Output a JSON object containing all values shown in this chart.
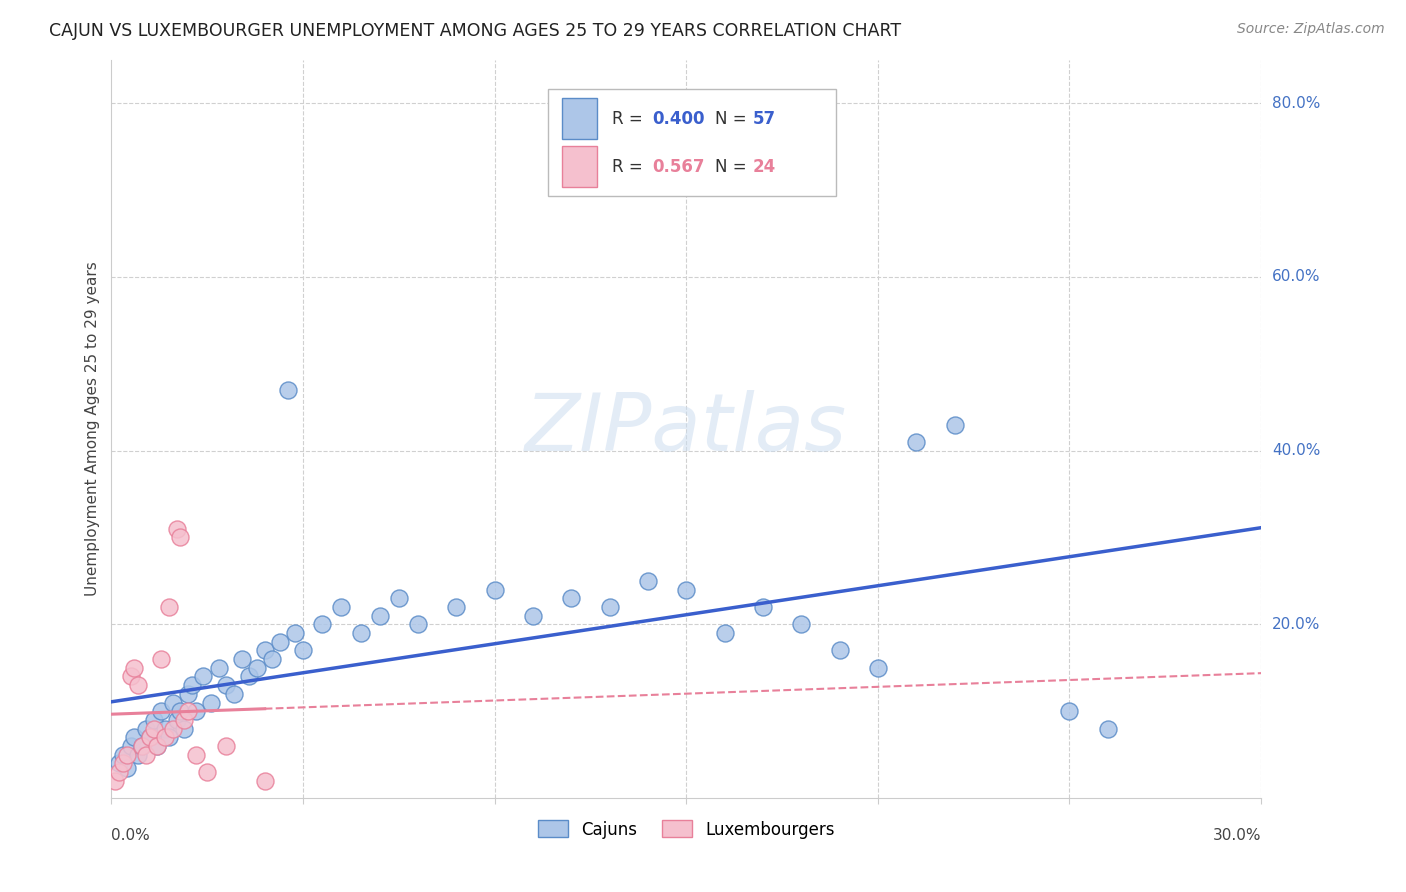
{
  "title": "CAJUN VS LUXEMBOURGER UNEMPLOYMENT AMONG AGES 25 TO 29 YEARS CORRELATION CHART",
  "source": "Source: ZipAtlas.com",
  "ylabel": "Unemployment Among Ages 25 to 29 years",
  "xlim": [
    0,
    0.3
  ],
  "ylim": [
    0,
    0.85
  ],
  "cajun_color": "#adc6e8",
  "cajun_edge_color": "#5b8cc8",
  "luxembourger_color": "#f5c0ce",
  "luxembourger_edge_color": "#e8809a",
  "cajun_line_color": "#3a5fcd",
  "luxembourger_line_color": "#e8809a",
  "grid_color": "#d0d0d0",
  "right_label_color": "#4472c4",
  "watermark_color": "#ccddf0",
  "cajun_points": [
    [
      0.002,
      0.04
    ],
    [
      0.003,
      0.05
    ],
    [
      0.004,
      0.035
    ],
    [
      0.005,
      0.06
    ],
    [
      0.006,
      0.07
    ],
    [
      0.007,
      0.05
    ],
    [
      0.008,
      0.06
    ],
    [
      0.009,
      0.08
    ],
    [
      0.01,
      0.07
    ],
    [
      0.011,
      0.09
    ],
    [
      0.012,
      0.06
    ],
    [
      0.013,
      0.1
    ],
    [
      0.014,
      0.08
    ],
    [
      0.015,
      0.07
    ],
    [
      0.016,
      0.11
    ],
    [
      0.017,
      0.09
    ],
    [
      0.018,
      0.1
    ],
    [
      0.019,
      0.08
    ],
    [
      0.02,
      0.12
    ],
    [
      0.021,
      0.13
    ],
    [
      0.022,
      0.1
    ],
    [
      0.024,
      0.14
    ],
    [
      0.026,
      0.11
    ],
    [
      0.028,
      0.15
    ],
    [
      0.03,
      0.13
    ],
    [
      0.032,
      0.12
    ],
    [
      0.034,
      0.16
    ],
    [
      0.036,
      0.14
    ],
    [
      0.038,
      0.15
    ],
    [
      0.04,
      0.17
    ],
    [
      0.042,
      0.16
    ],
    [
      0.044,
      0.18
    ],
    [
      0.046,
      0.47
    ],
    [
      0.048,
      0.19
    ],
    [
      0.05,
      0.17
    ],
    [
      0.055,
      0.2
    ],
    [
      0.06,
      0.22
    ],
    [
      0.065,
      0.19
    ],
    [
      0.07,
      0.21
    ],
    [
      0.075,
      0.23
    ],
    [
      0.08,
      0.2
    ],
    [
      0.09,
      0.22
    ],
    [
      0.1,
      0.24
    ],
    [
      0.11,
      0.21
    ],
    [
      0.12,
      0.23
    ],
    [
      0.13,
      0.22
    ],
    [
      0.14,
      0.25
    ],
    [
      0.15,
      0.24
    ],
    [
      0.16,
      0.19
    ],
    [
      0.17,
      0.22
    ],
    [
      0.18,
      0.2
    ],
    [
      0.19,
      0.17
    ],
    [
      0.2,
      0.15
    ],
    [
      0.21,
      0.41
    ],
    [
      0.22,
      0.43
    ],
    [
      0.25,
      0.1
    ],
    [
      0.26,
      0.08
    ]
  ],
  "luxembourger_points": [
    [
      0.001,
      0.02
    ],
    [
      0.002,
      0.03
    ],
    [
      0.003,
      0.04
    ],
    [
      0.004,
      0.05
    ],
    [
      0.005,
      0.14
    ],
    [
      0.006,
      0.15
    ],
    [
      0.007,
      0.13
    ],
    [
      0.008,
      0.06
    ],
    [
      0.009,
      0.05
    ],
    [
      0.01,
      0.07
    ],
    [
      0.011,
      0.08
    ],
    [
      0.012,
      0.06
    ],
    [
      0.013,
      0.16
    ],
    [
      0.014,
      0.07
    ],
    [
      0.015,
      0.22
    ],
    [
      0.016,
      0.08
    ],
    [
      0.017,
      0.31
    ],
    [
      0.018,
      0.3
    ],
    [
      0.019,
      0.09
    ],
    [
      0.02,
      0.1
    ],
    [
      0.022,
      0.05
    ],
    [
      0.025,
      0.03
    ],
    [
      0.03,
      0.06
    ],
    [
      0.04,
      0.02
    ]
  ]
}
